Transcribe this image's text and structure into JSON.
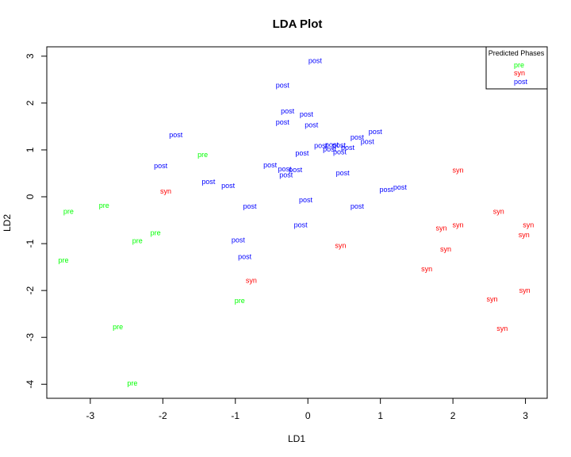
{
  "chart_data": {
    "type": "scatter",
    "title": "LDA Plot",
    "xlabel": "LD1",
    "ylabel": "LD2",
    "xlim": [
      -3.6,
      3.3
    ],
    "ylim": [
      -4.3,
      3.2
    ],
    "xticks": [
      -3,
      -2,
      -1,
      0,
      1,
      2,
      3
    ],
    "yticks": [
      -4,
      -3,
      -2,
      -1,
      0,
      1,
      2,
      3
    ],
    "grid": false,
    "legend": {
      "title": "Predicted Phases",
      "placement": "top-right",
      "entries": [
        {
          "label": "pre",
          "color": "#00ff00"
        },
        {
          "label": "syn",
          "color": "#ff0000"
        },
        {
          "label": "post",
          "color": "#0000ff"
        }
      ]
    },
    "colors": {
      "pre": "#00ff00",
      "syn": "#ff0000",
      "post": "#0000ff"
    },
    "points": [
      {
        "x": 0.1,
        "y": 2.9,
        "label": "post"
      },
      {
        "x": -0.35,
        "y": 2.38,
        "label": "post"
      },
      {
        "x": -0.28,
        "y": 1.83,
        "label": "post"
      },
      {
        "x": -0.02,
        "y": 1.76,
        "label": "post"
      },
      {
        "x": -0.35,
        "y": 1.59,
        "label": "post"
      },
      {
        "x": 0.05,
        "y": 1.53,
        "label": "post"
      },
      {
        "x": -1.82,
        "y": 1.32,
        "label": "post"
      },
      {
        "x": 0.93,
        "y": 1.39,
        "label": "post"
      },
      {
        "x": 0.68,
        "y": 1.27,
        "label": "post"
      },
      {
        "x": 0.82,
        "y": 1.18,
        "label": "post"
      },
      {
        "x": 0.18,
        "y": 1.09,
        "label": "post"
      },
      {
        "x": 0.33,
        "y": 1.11,
        "label": "post"
      },
      {
        "x": 0.43,
        "y": 1.1,
        "label": "post"
      },
      {
        "x": 0.3,
        "y": 1.02,
        "label": "post"
      },
      {
        "x": 0.55,
        "y": 1.05,
        "label": "post"
      },
      {
        "x": 0.44,
        "y": 0.96,
        "label": "post"
      },
      {
        "x": -1.45,
        "y": 0.9,
        "label": "pre"
      },
      {
        "x": -0.08,
        "y": 0.93,
        "label": "post"
      },
      {
        "x": -2.03,
        "y": 0.66,
        "label": "post"
      },
      {
        "x": -0.52,
        "y": 0.68,
        "label": "post"
      },
      {
        "x": -0.32,
        "y": 0.59,
        "label": "post"
      },
      {
        "x": -0.17,
        "y": 0.58,
        "label": "post"
      },
      {
        "x": -0.3,
        "y": 0.47,
        "label": "post"
      },
      {
        "x": 0.48,
        "y": 0.51,
        "label": "post"
      },
      {
        "x": -1.37,
        "y": 0.32,
        "label": "post"
      },
      {
        "x": -1.1,
        "y": 0.24,
        "label": "post"
      },
      {
        "x": 1.27,
        "y": 0.2,
        "label": "post"
      },
      {
        "x": 1.08,
        "y": 0.15,
        "label": "post"
      },
      {
        "x": -0.03,
        "y": -0.07,
        "label": "post"
      },
      {
        "x": -0.8,
        "y": -0.2,
        "label": "post"
      },
      {
        "x": 0.68,
        "y": -0.2,
        "label": "post"
      },
      {
        "x": -0.1,
        "y": -0.6,
        "label": "post"
      },
      {
        "x": -0.96,
        "y": -0.92,
        "label": "post"
      },
      {
        "x": -0.87,
        "y": -1.28,
        "label": "post"
      },
      {
        "x": -1.96,
        "y": 0.12,
        "label": "syn"
      },
      {
        "x": 2.07,
        "y": 0.57,
        "label": "syn"
      },
      {
        "x": 2.63,
        "y": -0.31,
        "label": "syn"
      },
      {
        "x": 3.04,
        "y": -0.6,
        "label": "syn"
      },
      {
        "x": 2.07,
        "y": -0.6,
        "label": "syn"
      },
      {
        "x": 1.84,
        "y": -0.67,
        "label": "syn"
      },
      {
        "x": 2.98,
        "y": -0.81,
        "label": "syn"
      },
      {
        "x": 0.45,
        "y": -1.04,
        "label": "syn"
      },
      {
        "x": 1.9,
        "y": -1.12,
        "label": "syn"
      },
      {
        "x": 1.64,
        "y": -1.54,
        "label": "syn"
      },
      {
        "x": 2.99,
        "y": -2.0,
        "label": "syn"
      },
      {
        "x": 2.54,
        "y": -2.18,
        "label": "syn"
      },
      {
        "x": 2.68,
        "y": -2.81,
        "label": "syn"
      },
      {
        "x": -3.3,
        "y": -0.31,
        "label": "pre"
      },
      {
        "x": -2.81,
        "y": -0.19,
        "label": "pre"
      },
      {
        "x": -2.1,
        "y": -0.77,
        "label": "pre"
      },
      {
        "x": -2.35,
        "y": -0.94,
        "label": "pre"
      },
      {
        "x": -3.37,
        "y": -1.35,
        "label": "pre"
      },
      {
        "x": -0.78,
        "y": -1.79,
        "label": "syn"
      },
      {
        "x": -0.94,
        "y": -2.22,
        "label": "pre"
      },
      {
        "x": -2.62,
        "y": -2.78,
        "label": "pre"
      },
      {
        "x": -2.42,
        "y": -3.98,
        "label": "pre"
      }
    ]
  }
}
